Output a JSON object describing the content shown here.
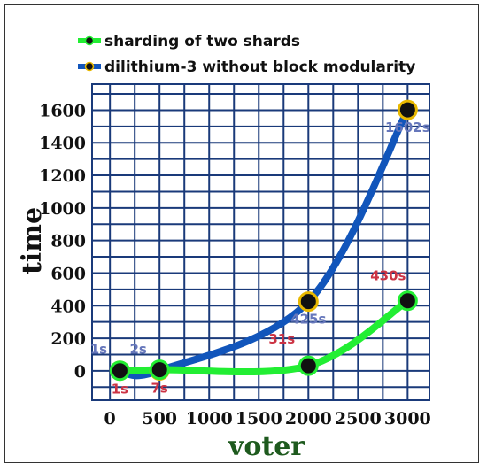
{
  "chart_data": {
    "type": "line",
    "xlabel": "voter",
    "ylabel": "time",
    "x_ticks": [
      "0",
      "500",
      "1000",
      "1500",
      "2000",
      "2500",
      "3000"
    ],
    "y_ticks": [
      "0",
      "200",
      "400",
      "600",
      "800",
      "1000",
      "1200",
      "1400",
      "1600"
    ],
    "xlim": [
      -180,
      3220
    ],
    "ylim": [
      -180,
      1760
    ],
    "grid": true,
    "legend_position": "top",
    "series": [
      {
        "name": "sharding of two shards",
        "color": "#22ee33",
        "x": [
          100,
          500,
          2000,
          3000
        ],
        "y": [
          1,
          7,
          31,
          430
        ],
        "labels": [
          "1s",
          "7s",
          "31s",
          "430s"
        ],
        "label_color": "#cc3344"
      },
      {
        "name": "dilithium-3 without block modularity",
        "color": "#1155bb",
        "x": [
          100,
          500,
          2000,
          3000
        ],
        "y": [
          1,
          2,
          425,
          1602
        ],
        "labels": [
          "1s",
          "2s",
          "425s",
          "1602s"
        ],
        "label_color": "#6677bb"
      }
    ]
  }
}
